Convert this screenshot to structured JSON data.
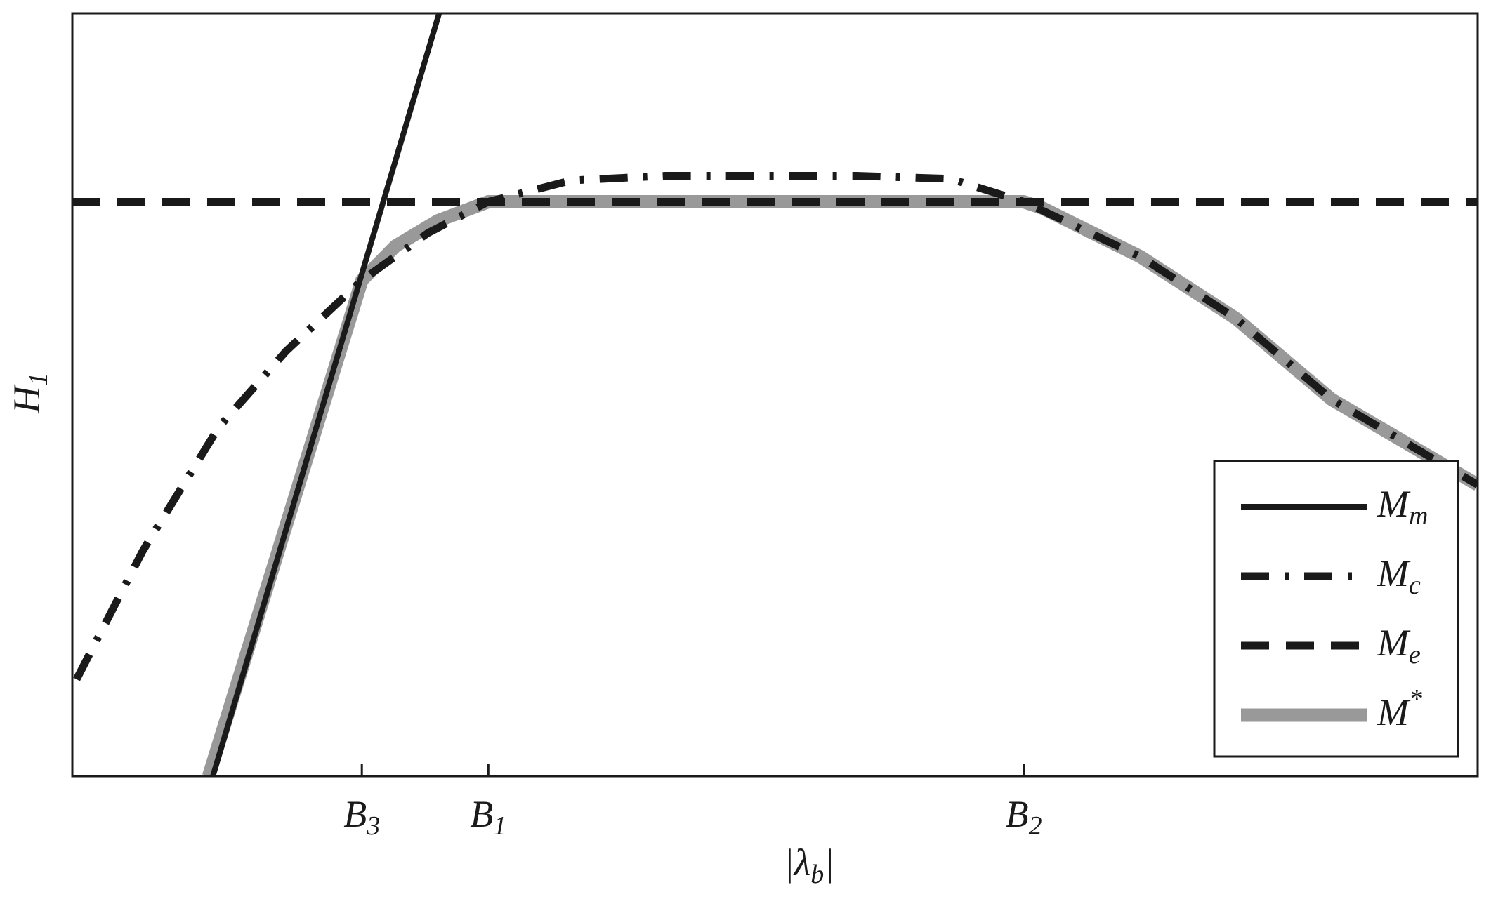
{
  "chart_data": {
    "type": "line",
    "xlabel": "|λb|",
    "ylabel": "H1",
    "xlim": [
      0,
      100
    ],
    "ylim": [
      0,
      100
    ],
    "xticks": [
      {
        "value": 20.6,
        "label": "B3"
      },
      {
        "value": 29.6,
        "label": "B1"
      },
      {
        "value": 67.7,
        "label": "B2"
      }
    ],
    "legend": "lower right",
    "series": [
      {
        "name": "Mm",
        "color": "#1a1a1a",
        "style": "solid",
        "x": [
          10.0,
          26.1
        ],
        "values": [
          0,
          100
        ]
      },
      {
        "name": "Mc",
        "color": "#1a1a1a",
        "style": "dashdot",
        "x": [
          0.3,
          5.0,
          10.4,
          15.2,
          20.6,
          25.3,
          29.6,
          35.5,
          42.2,
          55.8,
          62.5,
          67.7,
          76.0,
          82.8,
          89.6,
          100
        ],
        "values": [
          12.7,
          29.5,
          45.7,
          55.7,
          65.0,
          71.2,
          75.3,
          78.1,
          78.7,
          78.7,
          78.3,
          75.3,
          68.1,
          60.0,
          49.4,
          38.2
        ]
      },
      {
        "name": "Me",
        "color": "#1a1a1a",
        "style": "dashed",
        "x": [
          0,
          100
        ],
        "values": [
          75.3,
          75.3
        ]
      },
      {
        "name": "M*",
        "color": "#999999",
        "style": "thick",
        "x": [
          9.7,
          20.6,
          23.0,
          26.0,
          29.6,
          67.7,
          69.0,
          76.0,
          82.8,
          89.6,
          100
        ],
        "values": [
          0,
          65.0,
          69.5,
          72.8,
          75.3,
          75.3,
          74.5,
          68.1,
          60.0,
          49.4,
          38.2
        ]
      }
    ]
  }
}
